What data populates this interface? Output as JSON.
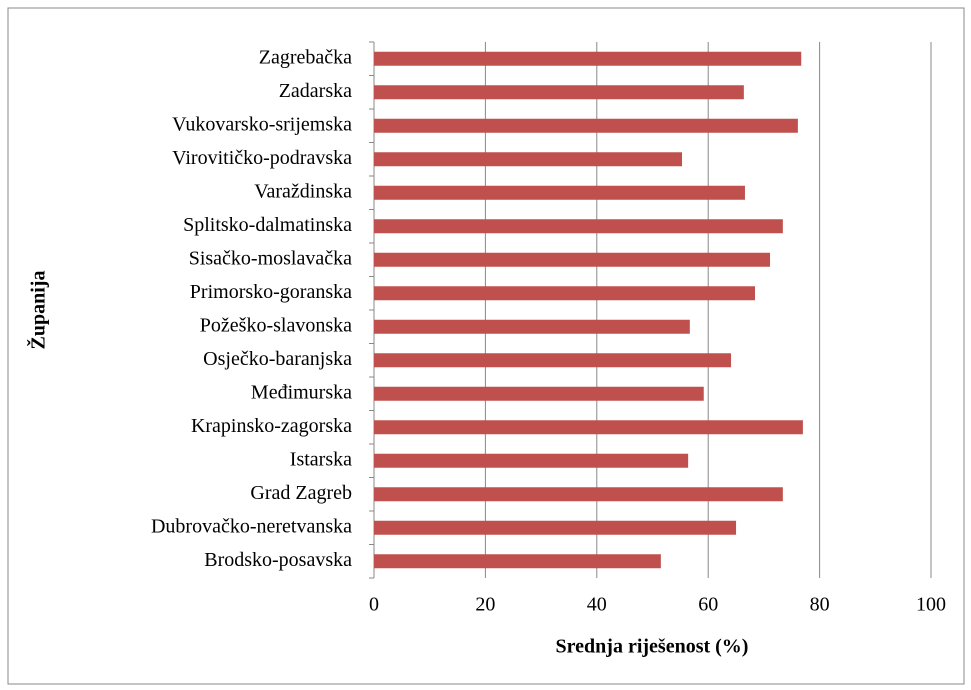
{
  "chart_data": {
    "type": "bar",
    "orientation": "horizontal",
    "xlabel": "Srednja riješenost (%)",
    "ylabel": "Županija",
    "categories": [
      "Zagrebačka",
      "Zadarska",
      "Vukovarsko-srijemska",
      "Virovitičko-podravska",
      "Varaždinska",
      "Splitsko-dalmatinska",
      "Sisačko-moslavačka",
      "Primorsko-goranska",
      "Požeško-slavonska",
      "Osječko-baranjska",
      "Međimurska",
      "Krapinsko-zagorska",
      "Istarska",
      "Grad Zagreb",
      "Dubrovačko-neretvanska",
      "Brodsko-posavska"
    ],
    "values": [
      76.7,
      66.4,
      76.1,
      55.3,
      66.6,
      73.4,
      71.1,
      68.4,
      56.7,
      64.1,
      59.2,
      77.0,
      56.4,
      73.4,
      65.0,
      51.5
    ],
    "color": "#c0504d",
    "xlim": [
      0,
      100
    ],
    "xticks": [
      0,
      20,
      40,
      60,
      80,
      100
    ],
    "grid": true
  }
}
